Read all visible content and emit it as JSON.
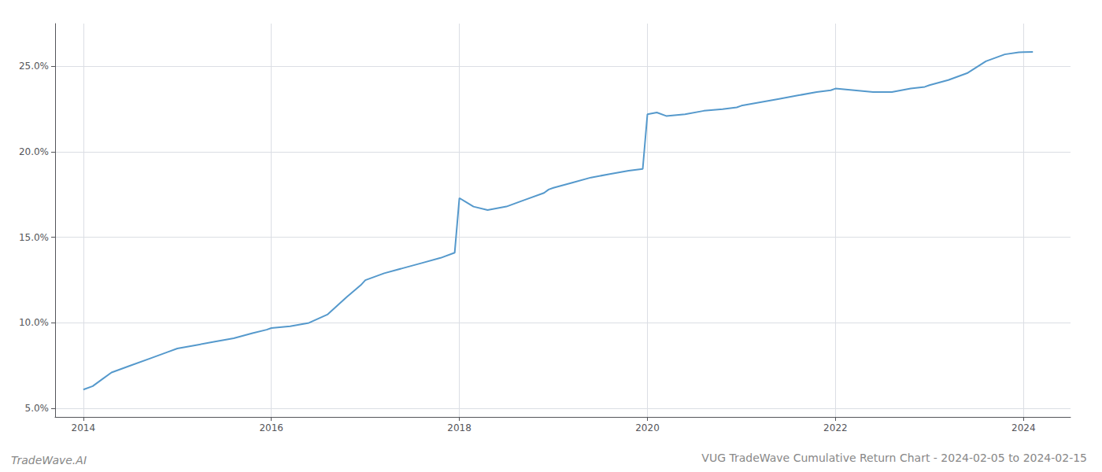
{
  "chart_data": {
    "type": "line",
    "title": "VUG TradeWave Cumulative Return Chart - 2024-02-05 to 2024-02-15",
    "annotations": [
      "TradeWave.AI"
    ],
    "color": "#5599cc",
    "grid": true,
    "x": [
      2014.0,
      2014.1,
      2014.2,
      2014.3,
      2014.5,
      2014.7,
      2014.9,
      2015.0,
      2015.2,
      2015.4,
      2015.6,
      2015.8,
      2015.95,
      2016.0,
      2016.2,
      2016.4,
      2016.6,
      2016.8,
      2016.95,
      2017.0,
      2017.2,
      2017.4,
      2017.6,
      2017.8,
      2017.95,
      2018.0,
      2018.15,
      2018.3,
      2018.5,
      2018.7,
      2018.9,
      2018.95,
      2019.0,
      2019.2,
      2019.4,
      2019.6,
      2019.8,
      2019.95,
      2020.0,
      2020.1,
      2020.2,
      2020.4,
      2020.6,
      2020.8,
      2020.95,
      2021.0,
      2021.2,
      2021.4,
      2021.6,
      2021.8,
      2021.95,
      2022.0,
      2022.2,
      2022.4,
      2022.6,
      2022.8,
      2022.95,
      2023.0,
      2023.2,
      2023.4,
      2023.6,
      2023.8,
      2023.95,
      2024.0,
      2024.1
    ],
    "values": [
      6.1,
      6.3,
      6.7,
      7.1,
      7.5,
      7.9,
      8.3,
      8.5,
      8.7,
      8.9,
      9.1,
      9.4,
      9.6,
      9.7,
      9.8,
      10.0,
      10.5,
      11.5,
      12.2,
      12.5,
      12.9,
      13.2,
      13.5,
      13.8,
      14.1,
      17.3,
      16.8,
      16.6,
      16.8,
      17.2,
      17.6,
      17.8,
      17.9,
      18.2,
      18.5,
      18.7,
      18.9,
      19.0,
      22.2,
      22.3,
      22.1,
      22.2,
      22.4,
      22.5,
      22.6,
      22.7,
      22.9,
      23.1,
      23.3,
      23.5,
      23.6,
      23.7,
      23.6,
      23.5,
      23.5,
      23.7,
      23.8,
      23.9,
      24.2,
      24.6,
      25.3,
      25.7,
      25.82,
      25.83,
      25.84
    ],
    "xlim": [
      2013.7,
      2024.5
    ],
    "xticks": [
      2014,
      2016,
      2018,
      2020,
      2022,
      2024
    ],
    "ylim": [
      4.5,
      27.5
    ],
    "yticks": [
      {
        "value": 5.0,
        "label": "5.0%"
      },
      {
        "value": 10.0,
        "label": "10.0%"
      },
      {
        "value": 15.0,
        "label": "15.0%"
      },
      {
        "value": 20.0,
        "label": "20.0%"
      },
      {
        "value": 25.0,
        "label": "25.0%"
      }
    ]
  }
}
